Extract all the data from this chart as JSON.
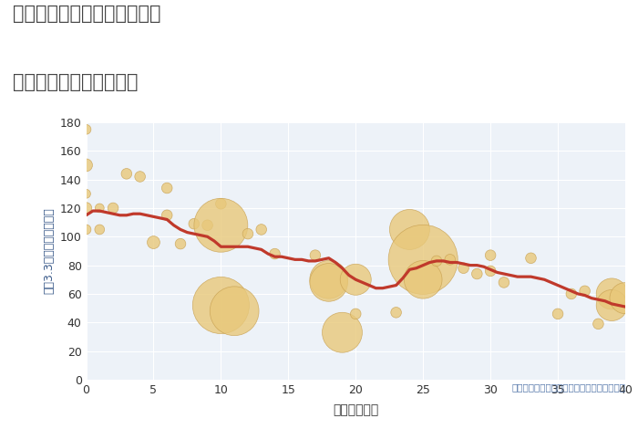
{
  "title_line1": "神奈川県相模原市緑区原宿の",
  "title_line2": "築年数別中古戸建て価格",
  "xlabel": "築年数（年）",
  "ylabel": "坪（3.3㎡）単価（万円）",
  "annotation": "円の大きさは、取引のあった物件面積を示す",
  "bg_color": "#ffffff",
  "plot_bg_color": "#edf2f8",
  "grid_color": "#ffffff",
  "scatter_color": "#e8c87a",
  "scatter_edge_color": "#c8a050",
  "line_color": "#c0392b",
  "title_color": "#444444",
  "ylabel_color": "#3a5a8a",
  "xlabel_color": "#333333",
  "tick_color": "#333333",
  "annotation_color": "#5577aa",
  "xlim": [
    0,
    40
  ],
  "ylim": [
    0,
    180
  ],
  "xticks": [
    0,
    5,
    10,
    15,
    20,
    25,
    30,
    35,
    40
  ],
  "yticks": [
    0,
    20,
    40,
    60,
    80,
    100,
    120,
    140,
    160,
    180
  ],
  "scatter_x": [
    0,
    0,
    0,
    0,
    0,
    1,
    1,
    2,
    3,
    4,
    5,
    6,
    6,
    7,
    8,
    9,
    10,
    10,
    10,
    11,
    12,
    13,
    14,
    17,
    18,
    18,
    19,
    20,
    20,
    23,
    24,
    25,
    25,
    26,
    27,
    28,
    29,
    30,
    30,
    31,
    33,
    35,
    36,
    37,
    38,
    39,
    39,
    40
  ],
  "scatter_y": [
    175,
    150,
    130,
    120,
    105,
    120,
    105,
    120,
    144,
    142,
    96,
    134,
    115,
    95,
    109,
    108,
    123,
    108,
    52,
    48,
    102,
    105,
    88,
    87,
    70,
    68,
    33,
    70,
    46,
    47,
    105,
    84,
    70,
    83,
    84,
    78,
    74,
    76,
    87,
    68,
    85,
    46,
    60,
    62,
    39,
    60,
    52,
    57
  ],
  "scatter_size": [
    60,
    100,
    50,
    80,
    60,
    50,
    60,
    70,
    70,
    70,
    100,
    70,
    70,
    70,
    70,
    70,
    70,
    1800,
    2000,
    1500,
    70,
    70,
    70,
    70,
    900,
    900,
    1000,
    600,
    70,
    70,
    1000,
    3000,
    900,
    70,
    70,
    70,
    70,
    70,
    70,
    70,
    70,
    70,
    70,
    70,
    70,
    600,
    600,
    600
  ],
  "line_x": [
    0,
    0.5,
    1,
    1.5,
    2,
    2.5,
    3,
    3.5,
    4,
    4.5,
    5,
    5.5,
    6,
    6.5,
    7,
    7.5,
    8,
    8.5,
    9,
    9.5,
    10,
    10.5,
    11,
    11.5,
    12,
    12.5,
    13,
    13.5,
    14,
    14.5,
    15,
    15.5,
    16,
    16.5,
    17,
    17.5,
    18,
    18.5,
    19,
    19.5,
    20,
    20.5,
    21,
    21.5,
    22,
    22.5,
    23,
    23.5,
    24,
    24.5,
    25,
    25.5,
    26,
    26.5,
    27,
    27.5,
    28,
    28.5,
    29,
    29.5,
    30,
    30.5,
    31,
    31.5,
    32,
    32.5,
    33,
    33.5,
    34,
    34.5,
    35,
    35.5,
    36,
    36.5,
    37,
    37.5,
    38,
    38.5,
    39,
    39.5,
    40
  ],
  "line_y": [
    115,
    118,
    118,
    117,
    116,
    115,
    115,
    116,
    116,
    115,
    114,
    113,
    112,
    108,
    105,
    103,
    102,
    101,
    100,
    97,
    93,
    93,
    93,
    93,
    93,
    92,
    91,
    88,
    86,
    86,
    85,
    84,
    84,
    83,
    83,
    84,
    85,
    82,
    78,
    73,
    70,
    68,
    66,
    64,
    64,
    65,
    66,
    71,
    77,
    78,
    80,
    82,
    83,
    83,
    82,
    82,
    81,
    80,
    80,
    79,
    77,
    75,
    74,
    73,
    72,
    72,
    72,
    71,
    70,
    68,
    66,
    64,
    62,
    60,
    59,
    57,
    56,
    55,
    53,
    52,
    51
  ]
}
